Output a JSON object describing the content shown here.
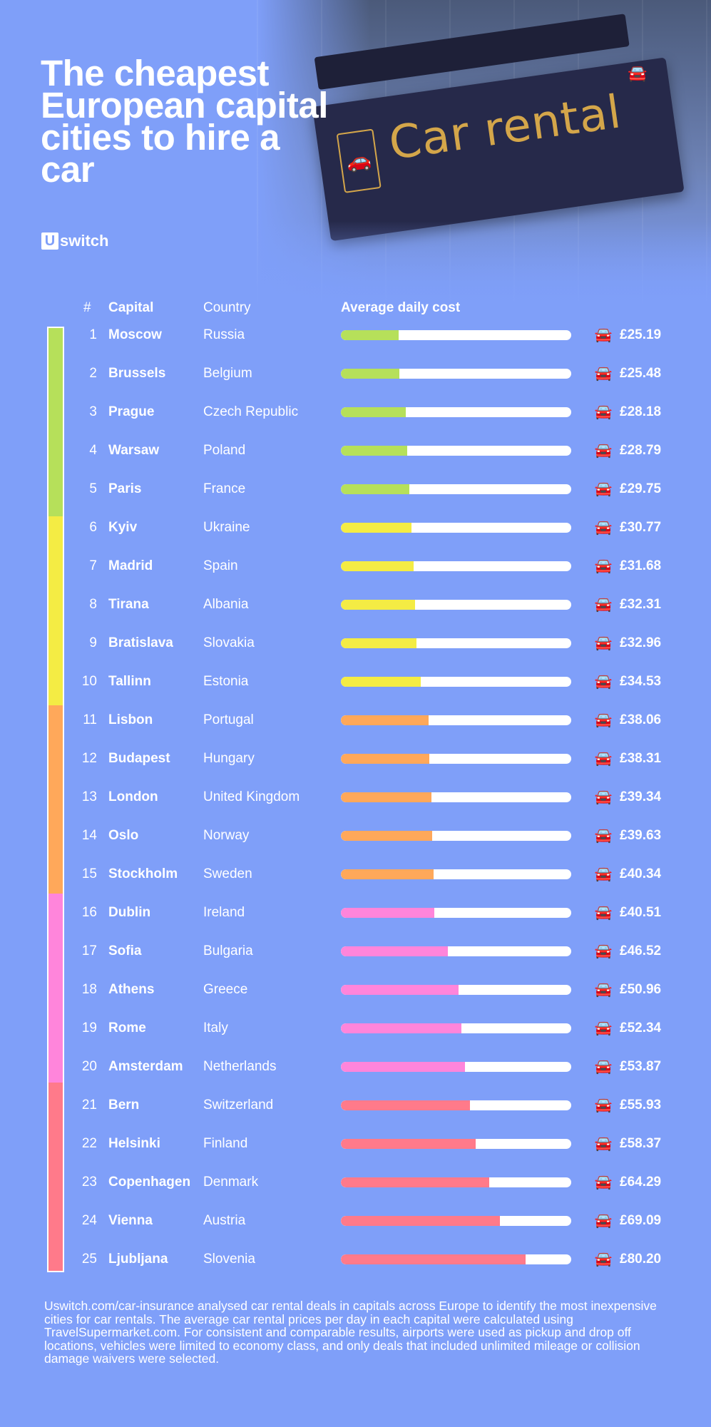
{
  "title": "The cheapest European capital cities to hire a car",
  "brand": {
    "logo_letter": "U",
    "logo_text": "switch"
  },
  "hero": {
    "sign_text": "Car rental"
  },
  "colors": {
    "background": "#7f9ff9",
    "tier1": "#b6e05a",
    "tier2": "#f4ec44",
    "tier3": "#ffa85a",
    "tier4": "#ff85db",
    "tier5": "#ff7a8a",
    "sign_text": "#d4a64a"
  },
  "headers": {
    "num": "#",
    "capital": "Capital",
    "country": "Country",
    "average": "Average daily cost"
  },
  "chart_data": {
    "type": "bar",
    "title": "The cheapest European capital cities to hire a car",
    "ylabel": "Average daily cost",
    "unit": "£",
    "xlim": [
      0,
      100
    ],
    "rows": [
      {
        "rank": "1",
        "capital": "Moscow",
        "country": "Russia",
        "value": 25.19,
        "label": "£25.19",
        "tier": 1
      },
      {
        "rank": "2",
        "capital": "Brussels",
        "country": "Belgium",
        "value": 25.48,
        "label": "£25.48",
        "tier": 1
      },
      {
        "rank": "3",
        "capital": "Prague",
        "country": "Czech Republic",
        "value": 28.18,
        "label": "£28.18",
        "tier": 1
      },
      {
        "rank": "4",
        "capital": "Warsaw",
        "country": "Poland",
        "value": 28.79,
        "label": "£28.79",
        "tier": 1
      },
      {
        "rank": "5",
        "capital": "Paris",
        "country": "France",
        "value": 29.75,
        "label": "£29.75",
        "tier": 1
      },
      {
        "rank": "6",
        "capital": "Kyiv",
        "country": "Ukraine",
        "value": 30.77,
        "label": "£30.77",
        "tier": 2
      },
      {
        "rank": "7",
        "capital": "Madrid",
        "country": "Spain",
        "value": 31.68,
        "label": "£31.68",
        "tier": 2
      },
      {
        "rank": "8",
        "capital": "Tirana",
        "country": "Albania",
        "value": 32.31,
        "label": "£32.31",
        "tier": 2
      },
      {
        "rank": "9",
        "capital": "Bratislava",
        "country": "Slovakia",
        "value": 32.96,
        "label": "£32.96",
        "tier": 2
      },
      {
        "rank": "10",
        "capital": "Tallinn",
        "country": "Estonia",
        "value": 34.53,
        "label": "£34.53",
        "tier": 2
      },
      {
        "rank": "11",
        "capital": "Lisbon",
        "country": "Portugal",
        "value": 38.06,
        "label": "£38.06",
        "tier": 3
      },
      {
        "rank": "12",
        "capital": "Budapest",
        "country": "Hungary",
        "value": 38.31,
        "label": "£38.31",
        "tier": 3
      },
      {
        "rank": "13",
        "capital": "London",
        "country": "United Kingdom",
        "value": 39.34,
        "label": "£39.34",
        "tier": 3
      },
      {
        "rank": "14",
        "capital": "Oslo",
        "country": "Norway",
        "value": 39.63,
        "label": "£39.63",
        "tier": 3
      },
      {
        "rank": "15",
        "capital": "Stockholm",
        "country": "Sweden",
        "value": 40.34,
        "label": "£40.34",
        "tier": 3
      },
      {
        "rank": "16",
        "capital": "Dublin",
        "country": "Ireland",
        "value": 40.51,
        "label": "£40.51",
        "tier": 4
      },
      {
        "rank": "17",
        "capital": "Sofia",
        "country": "Bulgaria",
        "value": 46.52,
        "label": "£46.52",
        "tier": 4
      },
      {
        "rank": "18",
        "capital": "Athens",
        "country": "Greece",
        "value": 50.96,
        "label": "£50.96",
        "tier": 4
      },
      {
        "rank": "19",
        "capital": "Rome",
        "country": "Italy",
        "value": 52.34,
        "label": "£52.34",
        "tier": 4
      },
      {
        "rank": "20",
        "capital": "Amsterdam",
        "country": "Netherlands",
        "value": 53.87,
        "label": "£53.87",
        "tier": 4
      },
      {
        "rank": "21",
        "capital": "Bern",
        "country": "Switzerland",
        "value": 55.93,
        "label": "£55.93",
        "tier": 5
      },
      {
        "rank": "22",
        "capital": "Helsinki",
        "country": "Finland",
        "value": 58.37,
        "label": "£58.37",
        "tier": 5
      },
      {
        "rank": "23",
        "capital": "Copenhagen",
        "country": "Denmark",
        "value": 64.29,
        "label": "£64.29",
        "tier": 5
      },
      {
        "rank": "24",
        "capital": "Vienna",
        "country": "Austria",
        "value": 69.09,
        "label": "£69.09",
        "tier": 5
      },
      {
        "rank": "25",
        "capital": "Ljubljana",
        "country": "Slovenia",
        "value": 80.2,
        "label": "£80.20",
        "tier": 5
      }
    ]
  },
  "footnote": "Uswitch.com/car-insurance analysed car rental deals in capitals across Europe to identify the most inexpensive cities for car rentals. The average car rental prices per day in each capital were calculated using TravelSupermarket.com. For consistent and comparable results, airports were used as pickup and drop off locations, vehicles were limited to economy class, and only deals that included unlimited mileage or collision damage waivers were selected."
}
